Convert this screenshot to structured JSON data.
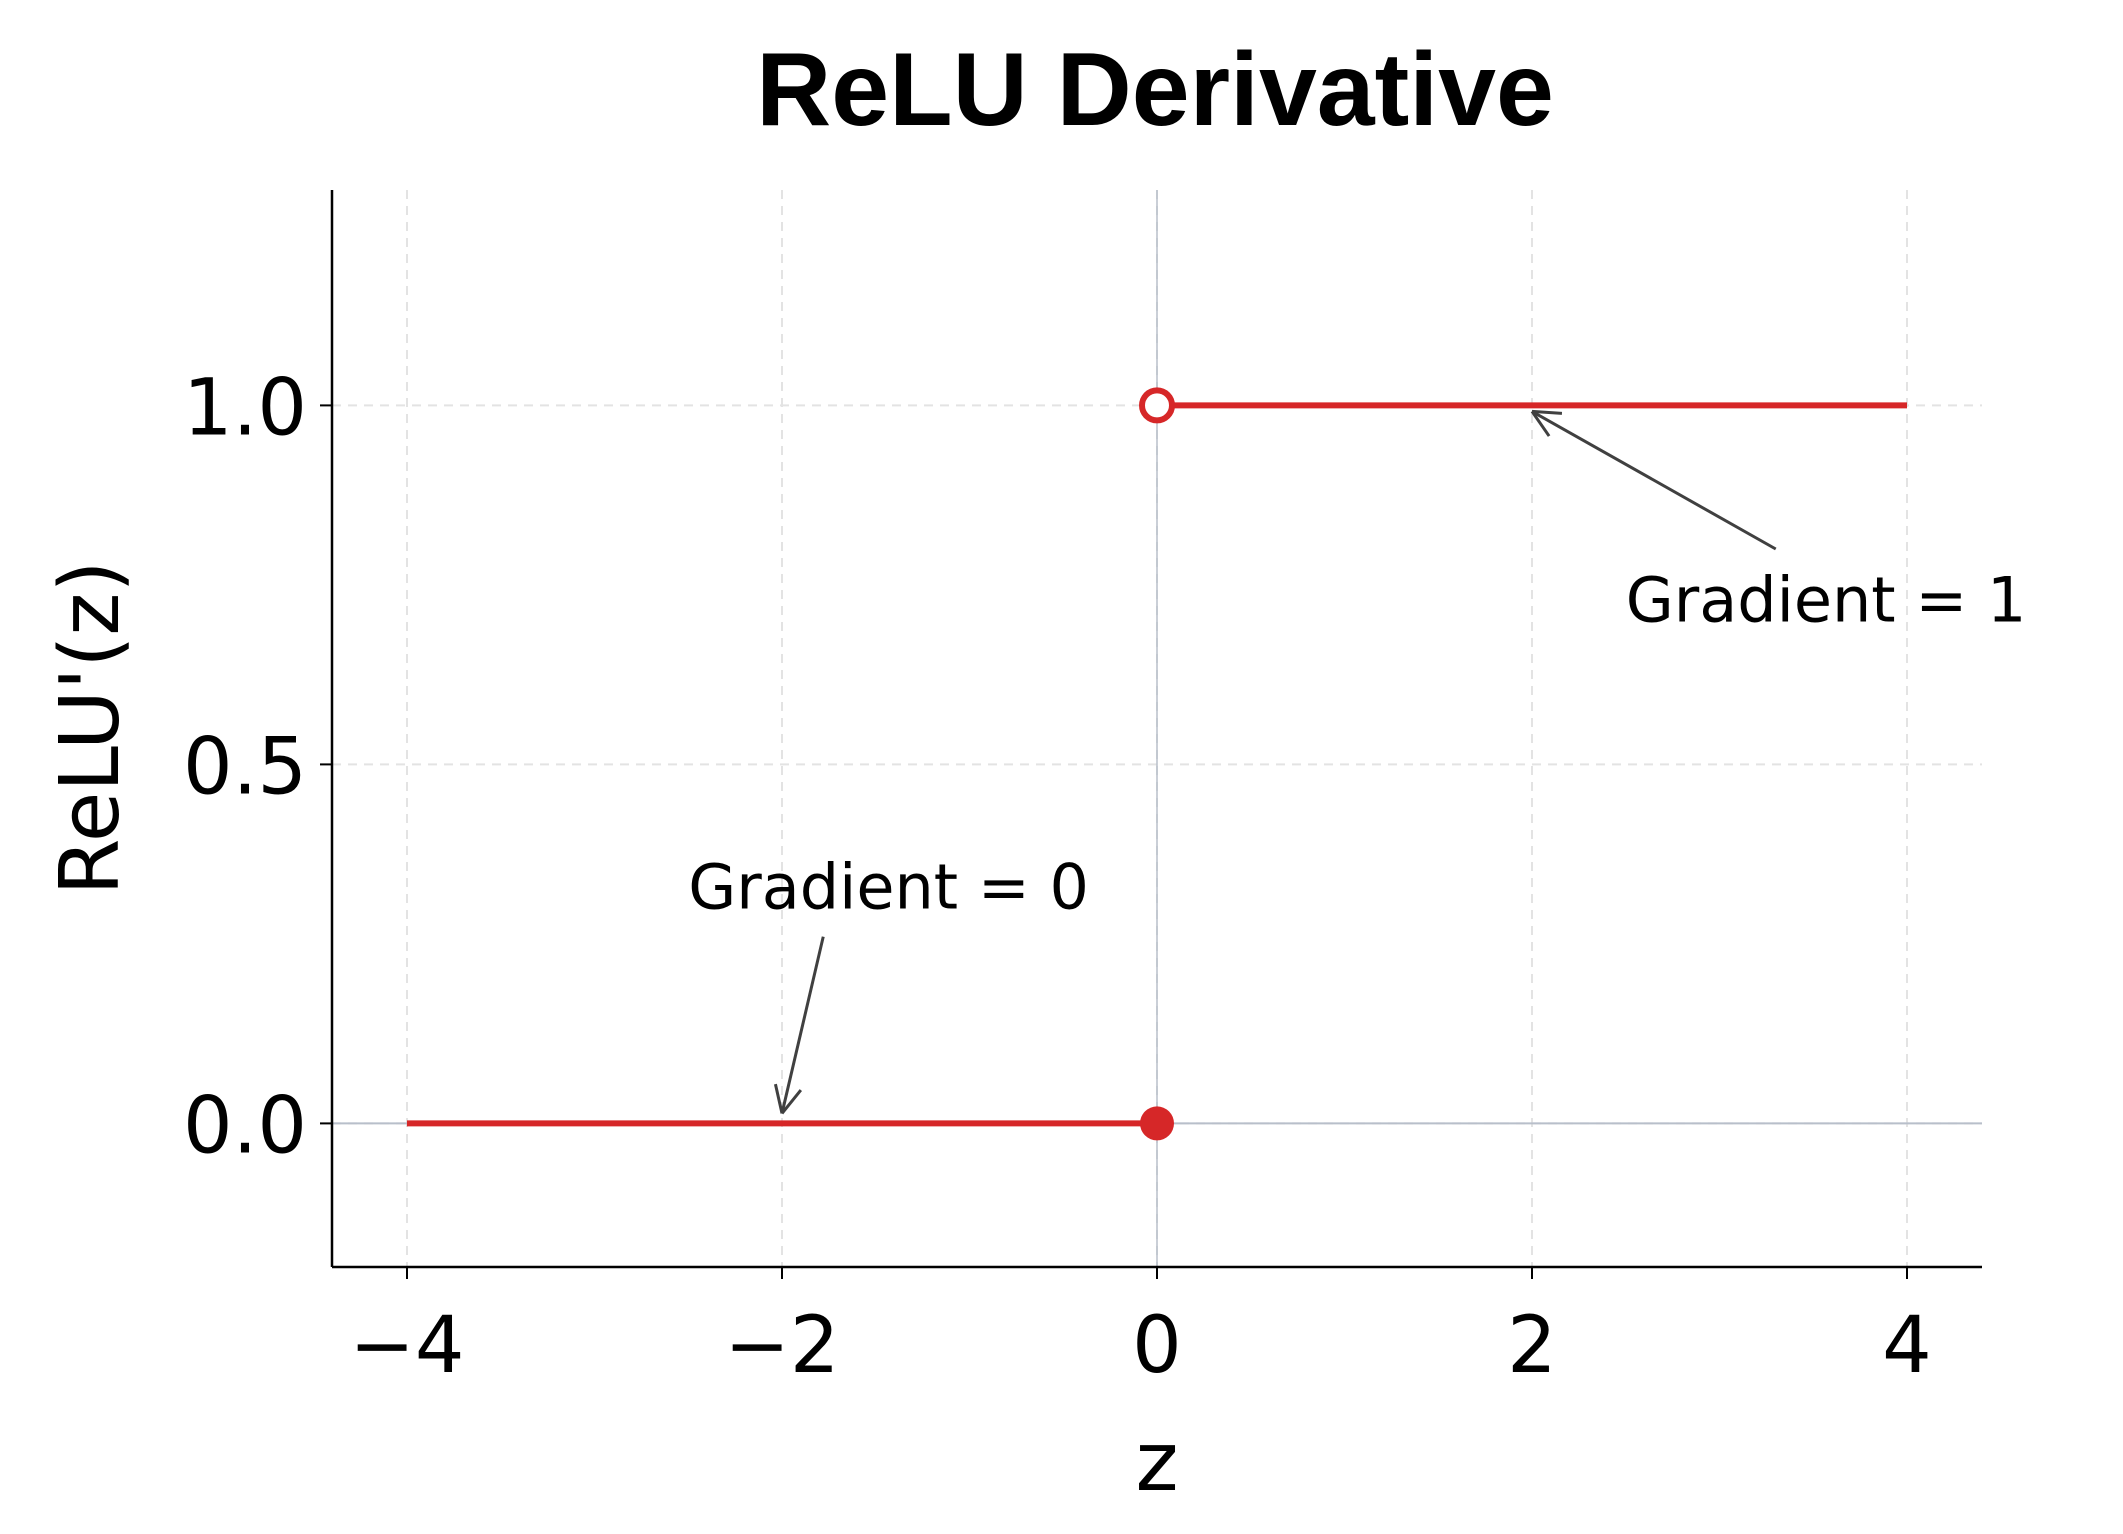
{
  "chart_data": {
    "type": "line",
    "title": "ReLU Derivative",
    "xlabel": "z",
    "ylabel": "ReLU'(z)",
    "xlim": [
      -4.4,
      4.4
    ],
    "ylim": [
      -0.2,
      1.3
    ],
    "xticks": [
      -4,
      -2,
      0,
      2,
      4
    ],
    "xtick_labels": [
      "−4",
      "−2",
      "0",
      "2",
      "4"
    ],
    "yticks": [
      0.0,
      0.5,
      1.0
    ],
    "ytick_labels": [
      "0.0",
      "0.5",
      "1.0"
    ],
    "grid": true,
    "series": [
      {
        "x": [
          -4,
          0
        ],
        "y": [
          0,
          0
        ],
        "color": "#d62728"
      },
      {
        "x": [
          0,
          4
        ],
        "y": [
          1,
          1
        ],
        "color": "#d62728"
      }
    ],
    "points": [
      {
        "x": 0,
        "y": 0,
        "style": "filled",
        "color": "#d62728"
      },
      {
        "x": 0,
        "y": 1,
        "style": "open",
        "color": "#d62728"
      }
    ],
    "annotations": [
      {
        "text": "Gradient = 0",
        "xy": [
          -2,
          0
        ],
        "xytext": [
          -2.5,
          0.33
        ]
      },
      {
        "text": "Gradient = 1",
        "xy": [
          2,
          1
        ],
        "xytext": [
          2.5,
          0.73
        ]
      }
    ]
  }
}
